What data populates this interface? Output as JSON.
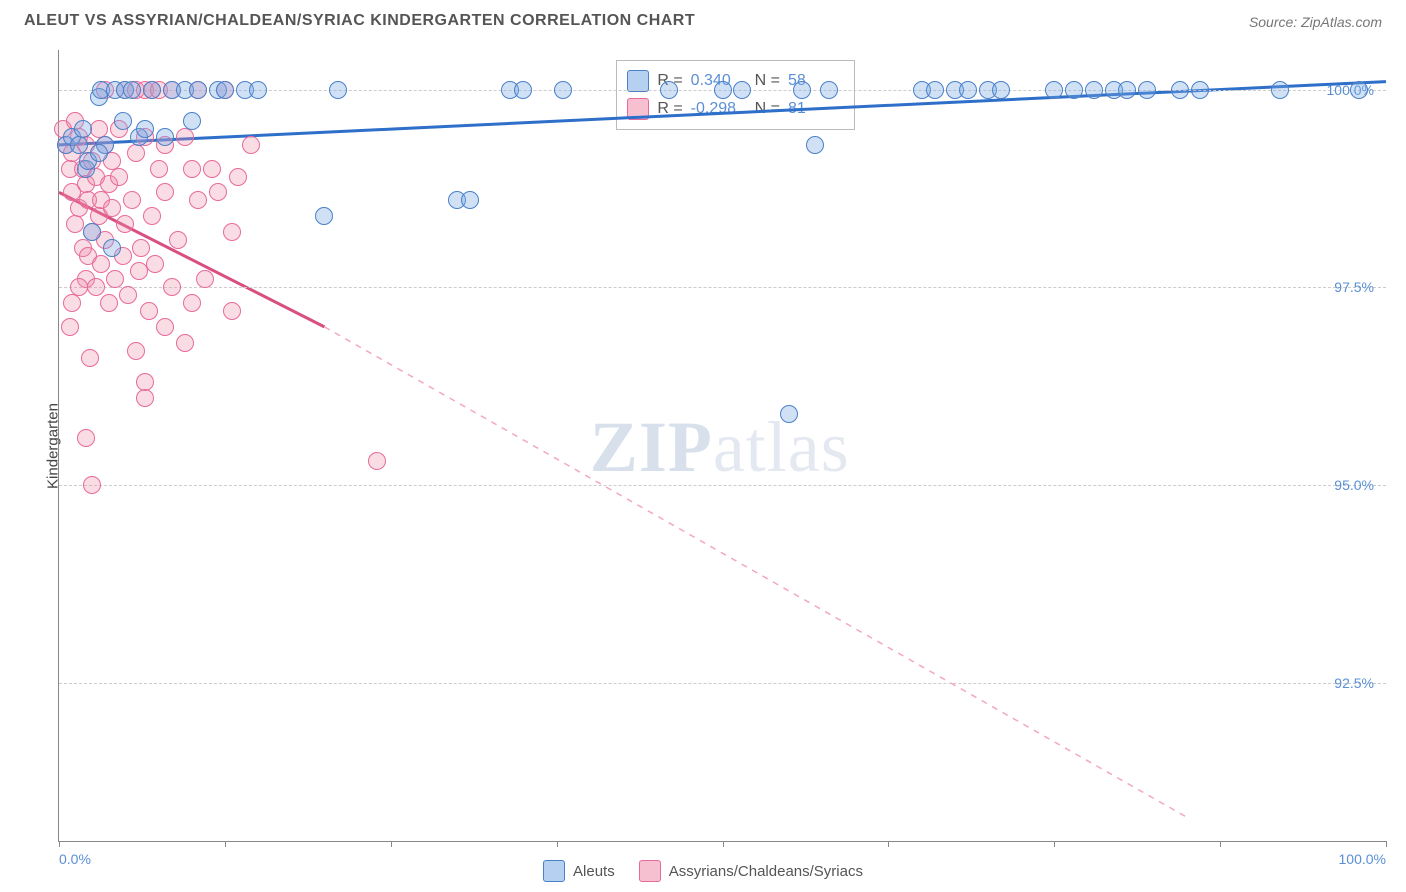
{
  "header": {
    "title": "ALEUT VS ASSYRIAN/CHALDEAN/SYRIAC KINDERGARTEN CORRELATION CHART",
    "source": "Source: ZipAtlas.com"
  },
  "watermark": {
    "zip": "ZIP",
    "atlas": "atlas"
  },
  "chart": {
    "type": "scatter",
    "ylabel": "Kindergarten",
    "xlim": [
      0,
      100
    ],
    "ylim": [
      90.5,
      100.5
    ],
    "ytick_labels": [
      "92.5%",
      "95.0%",
      "97.5%",
      "100.0%"
    ],
    "ytick_values": [
      92.5,
      95.0,
      97.5,
      100.0
    ],
    "xtick_values": [
      0,
      12.5,
      25,
      37.5,
      50,
      62.5,
      75,
      87.5,
      100
    ],
    "xaxis_left_label": "0.0%",
    "xaxis_right_label": "100.0%",
    "background_color": "#ffffff",
    "grid_color": "#cccccc",
    "series": {
      "blue": {
        "name": "Aleuts",
        "color_fill": "rgba(120,170,230,0.35)",
        "color_stroke": "#4a80c8",
        "marker_size": 18,
        "R": "0.340",
        "N": "58",
        "trend": {
          "x1": 0,
          "y1": 99.3,
          "x2": 100,
          "y2": 100.1,
          "color": "#2e6fc9",
          "width": 3,
          "dash": "none"
        },
        "points": [
          [
            0.5,
            99.3
          ],
          [
            1.0,
            99.4
          ],
          [
            1.5,
            99.3
          ],
          [
            1.8,
            99.5
          ],
          [
            2.0,
            99.0
          ],
          [
            2.2,
            99.1
          ],
          [
            2.5,
            98.2
          ],
          [
            3.0,
            99.9
          ],
          [
            3.2,
            100.0
          ],
          [
            3.5,
            99.3
          ],
          [
            4.0,
            98.0
          ],
          [
            4.2,
            100.0
          ],
          [
            5.0,
            100.0
          ],
          [
            5.5,
            100.0
          ],
          [
            6.0,
            99.4
          ],
          [
            6.5,
            99.5
          ],
          [
            7.0,
            100.0
          ],
          [
            8.0,
            99.4
          ],
          [
            8.5,
            100.0
          ],
          [
            9.5,
            100.0
          ],
          [
            10.0,
            99.6
          ],
          [
            10.5,
            100.0
          ],
          [
            12.0,
            100.0
          ],
          [
            12.5,
            100.0
          ],
          [
            14.0,
            100.0
          ],
          [
            15.0,
            100.0
          ],
          [
            20.0,
            98.4
          ],
          [
            21.0,
            100.0
          ],
          [
            30.0,
            98.6
          ],
          [
            31.0,
            98.6
          ],
          [
            34.0,
            100.0
          ],
          [
            35.0,
            100.0
          ],
          [
            38.0,
            100.0
          ],
          [
            46.0,
            100.0
          ],
          [
            50.0,
            100.0
          ],
          [
            51.5,
            100.0
          ],
          [
            55.0,
            95.9
          ],
          [
            56.0,
            100.0
          ],
          [
            57.0,
            99.3
          ],
          [
            58.0,
            100.0
          ],
          [
            65.0,
            100.0
          ],
          [
            66.0,
            100.0
          ],
          [
            67.5,
            100.0
          ],
          [
            68.5,
            100.0
          ],
          [
            70.0,
            100.0
          ],
          [
            71.0,
            100.0
          ],
          [
            75.0,
            100.0
          ],
          [
            76.5,
            100.0
          ],
          [
            78.0,
            100.0
          ],
          [
            79.5,
            100.0
          ],
          [
            80.5,
            100.0
          ],
          [
            82.0,
            100.0
          ],
          [
            84.5,
            100.0
          ],
          [
            86.0,
            100.0
          ],
          [
            92.0,
            100.0
          ],
          [
            98.0,
            100.0
          ],
          [
            3.0,
            99.2
          ],
          [
            4.8,
            99.6
          ]
        ]
      },
      "pink": {
        "name": "Assyrians/Chaldeans/Syriacs",
        "color_fill": "rgba(240,140,170,0.30)",
        "color_stroke": "#e86a9a",
        "marker_size": 18,
        "R": "-0.298",
        "N": "81",
        "trend_solid": {
          "x1": 0,
          "y1": 98.7,
          "x2": 20,
          "y2": 97.0,
          "color": "#d94f82",
          "width": 3
        },
        "trend_dash": {
          "x1": 20,
          "y1": 97.0,
          "x2": 85,
          "y2": 90.8,
          "color": "#f2a8c0",
          "width": 1.5,
          "dash": "6,6"
        },
        "points": [
          [
            0.3,
            99.5
          ],
          [
            0.5,
            99.3
          ],
          [
            0.8,
            99.0
          ],
          [
            1.0,
            98.7
          ],
          [
            1.0,
            99.2
          ],
          [
            1.2,
            98.3
          ],
          [
            1.2,
            99.6
          ],
          [
            1.5,
            98.5
          ],
          [
            1.5,
            99.4
          ],
          [
            1.8,
            98.0
          ],
          [
            1.8,
            99.0
          ],
          [
            2.0,
            97.6
          ],
          [
            2.0,
            98.8
          ],
          [
            2.0,
            99.3
          ],
          [
            2.2,
            97.9
          ],
          [
            2.2,
            98.6
          ],
          [
            2.5,
            98.2
          ],
          [
            2.5,
            99.1
          ],
          [
            2.8,
            97.5
          ],
          [
            2.8,
            98.9
          ],
          [
            3.0,
            98.4
          ],
          [
            3.0,
            99.5
          ],
          [
            3.2,
            97.8
          ],
          [
            3.2,
            98.6
          ],
          [
            3.5,
            98.1
          ],
          [
            3.5,
            99.3
          ],
          [
            3.5,
            100.0
          ],
          [
            3.8,
            97.3
          ],
          [
            3.8,
            98.8
          ],
          [
            4.0,
            98.5
          ],
          [
            4.0,
            99.1
          ],
          [
            4.2,
            97.6
          ],
          [
            4.5,
            98.9
          ],
          [
            4.5,
            99.5
          ],
          [
            4.8,
            97.9
          ],
          [
            5.0,
            98.3
          ],
          [
            5.0,
            100.0
          ],
          [
            5.2,
            97.4
          ],
          [
            5.5,
            98.6
          ],
          [
            5.8,
            99.2
          ],
          [
            5.8,
            100.0
          ],
          [
            6.0,
            97.7
          ],
          [
            6.2,
            98.0
          ],
          [
            6.5,
            99.4
          ],
          [
            6.5,
            100.0
          ],
          [
            6.8,
            97.2
          ],
          [
            7.0,
            98.4
          ],
          [
            7.0,
            100.0
          ],
          [
            7.2,
            97.8
          ],
          [
            7.5,
            99.0
          ],
          [
            7.5,
            100.0
          ],
          [
            8.0,
            97.0
          ],
          [
            8.0,
            99.3
          ],
          [
            8.5,
            97.5
          ],
          [
            8.5,
            100.0
          ],
          [
            9.0,
            98.1
          ],
          [
            9.5,
            99.4
          ],
          [
            9.5,
            96.8
          ],
          [
            10.0,
            97.3
          ],
          [
            10.5,
            98.6
          ],
          [
            10.5,
            100.0
          ],
          [
            11.0,
            97.6
          ],
          [
            11.5,
            99.0
          ],
          [
            12.0,
            98.7
          ],
          [
            12.5,
            100.0
          ],
          [
            13.0,
            97.2
          ],
          [
            13.0,
            98.2
          ],
          [
            13.5,
            98.9
          ],
          [
            14.5,
            99.3
          ],
          [
            2.0,
            95.6
          ],
          [
            5.8,
            96.7
          ],
          [
            6.5,
            96.3
          ],
          [
            6.5,
            96.1
          ],
          [
            2.3,
            96.6
          ],
          [
            2.5,
            95.0
          ],
          [
            0.8,
            97.0
          ],
          [
            1.0,
            97.3
          ],
          [
            1.5,
            97.5
          ],
          [
            8.0,
            98.7
          ],
          [
            10.0,
            99.0
          ],
          [
            24.0,
            95.3
          ]
        ]
      }
    }
  },
  "bottom_legend": {
    "blue_label": "Aleuts",
    "pink_label": "Assyrians/Chaldeans/Syriacs"
  },
  "stats_legend": {
    "r_label": "R =",
    "n_label": "N ="
  }
}
